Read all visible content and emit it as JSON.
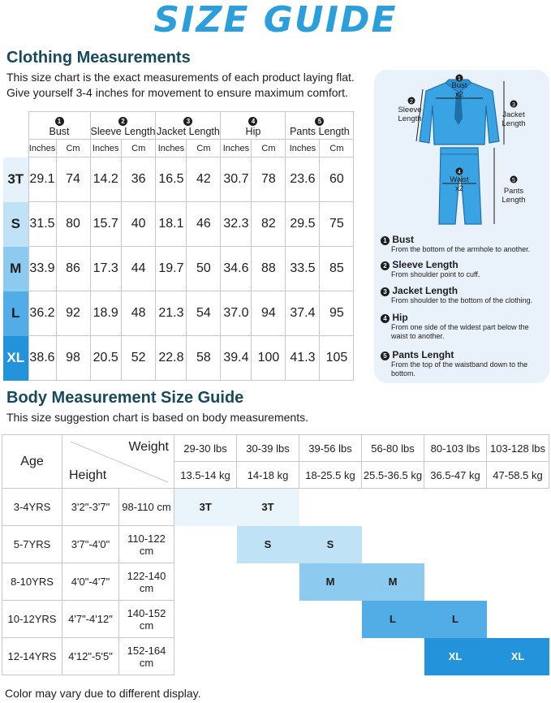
{
  "title": "SIZE GUIDE",
  "clothing": {
    "heading": "Clothing Measurements",
    "line1": "This size chart is the exact measurements of each product laying flat.",
    "line2": "Give yourself 3-4 inches for movement to ensure maximum comfort.",
    "columns": [
      {
        "num": "1",
        "name": "Bust"
      },
      {
        "num": "2",
        "name": "Sleeve Length"
      },
      {
        "num": "3",
        "name": "Jacket Length"
      },
      {
        "num": "4",
        "name": "Hip"
      },
      {
        "num": "5",
        "name": "Pants Length"
      }
    ],
    "unit_in": "Inches",
    "unit_cm": "Cm",
    "rows": [
      {
        "size": "3T",
        "values": [
          "29.1",
          "74",
          "14.2",
          "36",
          "16.5",
          "42",
          "30.7",
          "78",
          "23.6",
          "60"
        ],
        "color": "#e6f2fb"
      },
      {
        "size": "S",
        "values": [
          "31.5",
          "80",
          "15.7",
          "40",
          "18.1",
          "46",
          "32.3",
          "82",
          "29.5",
          "75"
        ],
        "color": "#bfe2f6"
      },
      {
        "size": "M",
        "values": [
          "33.9",
          "86",
          "17.3",
          "44",
          "19.7",
          "50",
          "34.6",
          "88",
          "33.5",
          "85"
        ],
        "color": "#8ccaf0"
      },
      {
        "size": "L",
        "values": [
          "36.2",
          "92",
          "18.9",
          "48",
          "21.3",
          "54",
          "37.0",
          "94",
          "37.4",
          "95"
        ],
        "color": "#52ace5"
      },
      {
        "size": "XL",
        "values": [
          "38.6",
          "98",
          "20.5",
          "52",
          "22.8",
          "58",
          "39.4",
          "100",
          "41.3",
          "105"
        ],
        "color": "#2393dc"
      }
    ]
  },
  "diagram": {
    "bust_label": "Bust\nx2",
    "sleeve_label": "Sleeve\nLength",
    "jacket_label": "Jacket\nLength",
    "waist_label": "Waist\nx2",
    "pants_label": "Pants\nLength",
    "descriptions": [
      {
        "num": "1",
        "title": "Bust",
        "text": "From the bottom of the armhole to another."
      },
      {
        "num": "2",
        "title": "Sleeve Length",
        "text": "From shoulder point to cuff."
      },
      {
        "num": "3",
        "title": "Jacket Length",
        "text": "From shoulder to the bottom of the clothing."
      },
      {
        "num": "4",
        "title": "Hip",
        "text": "From one side of the widest part below the waist to another."
      },
      {
        "num": "5",
        "title": "Pants Lenght",
        "text": "From the top of the waistband down to the bottom."
      }
    ]
  },
  "body": {
    "heading": "Body Measurement Size Guide",
    "subtitle": "This size suggestion chart is based on body measurements.",
    "age_label": "Age",
    "weight_label": "Weight",
    "height_label": "Height",
    "weights_lbs": [
      "29-30 lbs",
      "30-39 lbs",
      "39-56 lbs",
      "56-80 lbs",
      "80-103 lbs",
      "103-128 lbs"
    ],
    "weights_kg": [
      "13.5-14 kg",
      "14-18 kg",
      "18-25.5 kg",
      "25.5-36.5 kg",
      "36.5-47 kg",
      "47-58.5 kg"
    ],
    "rows": [
      {
        "age": "3-4YRS",
        "height_in": "3'2\"-3'7\"",
        "height_cm": "98-110 cm",
        "size": "3T",
        "start": 0,
        "color": "#e9f4fb"
      },
      {
        "age": "5-7YRS",
        "height_in": "3'7\"-4'0\"",
        "height_cm": "110-122 cm",
        "size": "S",
        "start": 1,
        "color": "#bfe2f6"
      },
      {
        "age": "8-10YRS",
        "height_in": "4'0\"-4'7\"",
        "height_cm": "122-140 cm",
        "size": "M",
        "start": 2,
        "color": "#8ccaf0"
      },
      {
        "age": "10-12YRS",
        "height_in": "4'7\"-4'12\"",
        "height_cm": "140-152 cm",
        "size": "L",
        "start": 3,
        "color": "#52ace5"
      },
      {
        "age": "12-14YRS",
        "height_in": "4'12\"-5'5\"",
        "height_cm": "152-164 cm",
        "size": "XL",
        "start": 4,
        "color": "#2393dc"
      }
    ]
  },
  "footer": "Color may vary due to different display."
}
